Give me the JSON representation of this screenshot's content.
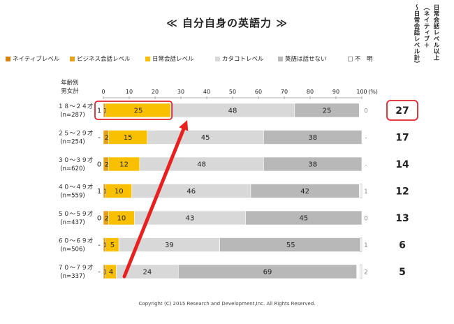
{
  "title": "≪ 自分自身の英語力 ≫",
  "footer": "Copyright (C) 2015 Research and Development,Inc. All Rights Reserved.",
  "right_header": {
    "col1": "日常会話レベル以上",
    "col2": "（ネイティブ＋",
    "col3": "～日常会話レベル計）"
  },
  "chart_data": {
    "type": "bar",
    "orientation": "horizontal",
    "stacked": true,
    "row_header": [
      "年齢別",
      "男女計"
    ],
    "axis_unit": "(%)",
    "xlim": [
      0,
      100
    ],
    "ticks": [
      0,
      10,
      20,
      30,
      40,
      50,
      60,
      70,
      80,
      90,
      100
    ],
    "legend": [
      {
        "label": "ネイティブレベル",
        "color": "#d9810e"
      },
      {
        "label": "ビジネス会話レベル",
        "color": "#e6a019"
      },
      {
        "label": "日常会話レベル",
        "color": "#f8c000"
      },
      {
        "label": "カタコトレベル",
        "color": "#d8d8d8"
      },
      {
        "label": "英語は話せない",
        "color": "#b8b8b8"
      },
      {
        "label": "不　明",
        "color": "#ffffff"
      }
    ],
    "rows": [
      {
        "age": "１８～２４才",
        "n": "(n=287)",
        "native": "1",
        "business": 1,
        "daily": 25,
        "katakoto": 48,
        "none": 25,
        "unknown": "0",
        "total": "27",
        "highlight": true
      },
      {
        "age": "２５～２９才",
        "n": "(n=254)",
        "native": "-",
        "business": 2,
        "daily": 15,
        "katakoto": 45,
        "none": 38,
        "unknown": "-",
        "total": "17",
        "highlight": false
      },
      {
        "age": "３０～３９才",
        "n": "(n=620)",
        "native": "0",
        "business": 2,
        "daily": 12,
        "katakoto": 48,
        "none": 38,
        "unknown": "-",
        "total": "14",
        "highlight": false
      },
      {
        "age": "４０～４９才",
        "n": "(n=559)",
        "native": "1",
        "business": 1,
        "daily": 10,
        "katakoto": 46,
        "none": 42,
        "unknown": "1",
        "total": "12",
        "highlight": false
      },
      {
        "age": "５０～５９才",
        "n": "(n=437)",
        "native": "0",
        "business": 2,
        "daily": 10,
        "katakoto": 43,
        "none": 45,
        "unknown": "0",
        "total": "13",
        "highlight": false
      },
      {
        "age": "６０～６９才",
        "n": "(n=506)",
        "native": "-",
        "business": 1,
        "daily": 5,
        "katakoto": 39,
        "none": 55,
        "unknown": "1",
        "total": "6",
        "highlight": false
      },
      {
        "age": "７０～７９才",
        "n": "(n=337)",
        "native": "-",
        "business": 1,
        "daily": 4,
        "katakoto": 24,
        "none": 69,
        "unknown": "2",
        "total": "5",
        "highlight": false
      }
    ]
  }
}
